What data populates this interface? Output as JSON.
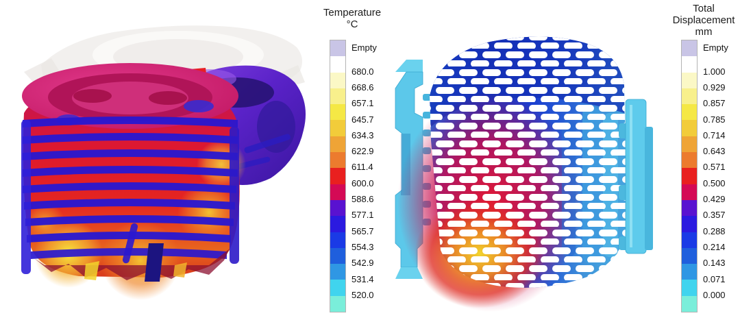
{
  "figure": {
    "background": "#ffffff",
    "views": {
      "temperature_view": {
        "label": "casting-temperature-result",
        "subject": "engine crankcase casting with cooling fins, colored by temperature; faint empty mold flange at top"
      },
      "displacement_view": {
        "label": "lattice-displacement-result",
        "subject": "cylindrical honeycomb lattice with cyan side frames, colored by total displacement"
      }
    },
    "legends": {
      "temperature": {
        "title_lines": [
          "Temperature",
          "°C"
        ],
        "empty_label": "Empty",
        "tick_labels": [
          "680.0",
          "668.6",
          "657.1",
          "645.7",
          "634.3",
          "622.9",
          "611.4",
          "600.0",
          "588.6",
          "577.1",
          "565.7",
          "554.3",
          "542.9",
          "531.4",
          "520.0"
        ],
        "band_colors": [
          "#c9c5e6",
          "#ffffff",
          "#fbf8c6",
          "#f8f08c",
          "#f5e845",
          "#f2cc3a",
          "#efa436",
          "#ec7b2e",
          "#e9201f",
          "#d40a55",
          "#5912d0",
          "#2b1ae0",
          "#1a3ae6",
          "#1f5fdd",
          "#2f97e4",
          "#40d4ee",
          "#7aeeda"
        ]
      },
      "displacement": {
        "title_lines": [
          "Total",
          "Displacement",
          "mm"
        ],
        "empty_label": "Empty",
        "tick_labels": [
          "1.000",
          "0.929",
          "0.857",
          "0.785",
          "0.714",
          "0.643",
          "0.571",
          "0.500",
          "0.429",
          "0.357",
          "0.288",
          "0.214",
          "0.143",
          "0.071",
          "0.000"
        ],
        "band_colors": [
          "#c9c5e6",
          "#ffffff",
          "#fbf8c6",
          "#f8f08c",
          "#f5e845",
          "#f2cc3a",
          "#efa436",
          "#ec7b2e",
          "#e9201f",
          "#d40a55",
          "#5912d0",
          "#2b1ae0",
          "#1a3ae6",
          "#1f5fdd",
          "#2f97e4",
          "#40d4ee",
          "#7aeeda"
        ]
      }
    }
  },
  "chart_data": [
    {
      "type": "heatmap",
      "title": "Temperature",
      "unit": "°C",
      "scale_ticks": [
        680.0,
        668.6,
        657.1,
        645.7,
        634.3,
        622.9,
        611.4,
        600.0,
        588.6,
        577.1,
        565.7,
        554.3,
        542.9,
        531.4,
        520.0
      ],
      "scale_range": [
        520.0,
        680.0
      ],
      "extra_bins": [
        "Empty"
      ],
      "legend_position": "right of view",
      "colormap_top_to_bottom": [
        "white",
        "yellow",
        "gold",
        "orange",
        "red",
        "crimson",
        "violet",
        "blue",
        "sky blue",
        "cyan",
        "aqua"
      ]
    },
    {
      "type": "heatmap",
      "title": "Total Displacement",
      "unit": "mm",
      "scale_ticks": [
        1.0,
        0.929,
        0.857,
        0.785,
        0.714,
        0.643,
        0.571,
        0.5,
        0.429,
        0.357,
        0.288,
        0.214,
        0.143,
        0.071,
        0.0
      ],
      "scale_range": [
        0.0,
        1.0
      ],
      "extra_bins": [
        "Empty"
      ],
      "legend_position": "right of view",
      "colormap_top_to_bottom": [
        "white",
        "yellow",
        "gold",
        "orange",
        "red",
        "crimson",
        "violet",
        "blue",
        "sky blue",
        "cyan",
        "aqua"
      ]
    }
  ]
}
